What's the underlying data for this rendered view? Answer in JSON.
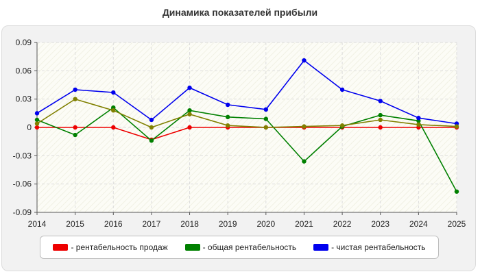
{
  "chart_data": {
    "type": "line",
    "title": "Динамика показателей прибыли",
    "xlabel": "",
    "ylabel": "",
    "x": [
      2014,
      2015,
      2016,
      2017,
      2018,
      2019,
      2020,
      2021,
      2022,
      2023,
      2024,
      2025
    ],
    "x_tick_labels": [
      "2014",
      "2015",
      "2016",
      "2017",
      "2018",
      "2019",
      "2020",
      "2021",
      "2022",
      "2023",
      "2024",
      "2025"
    ],
    "ylim": [
      -0.09,
      0.09
    ],
    "y_ticks": [
      -0.09,
      -0.06,
      -0.03,
      0,
      0.03,
      0.06,
      0.09
    ],
    "y_tick_labels": [
      "-0.09",
      "-0.06",
      "-0.03",
      "0",
      "0.03",
      "0.06",
      "0.09"
    ],
    "grid": true,
    "legend_position": "bottom",
    "series": [
      {
        "name": "- рентабельность продаж",
        "color": "#ee0000",
        "values": [
          0.0,
          0.0,
          0.0,
          -0.013,
          0.0,
          0.0,
          0.0,
          0.0,
          0.0,
          0.0,
          0.0,
          0.0
        ]
      },
      {
        "name": "- общая рентабельность",
        "color": "#008000",
        "values": [
          0.008,
          -0.008,
          0.021,
          -0.014,
          0.018,
          0.011,
          0.009,
          -0.036,
          0.001,
          0.013,
          0.007,
          -0.068
        ]
      },
      {
        "name": "- чистая рентабельность",
        "color": "#0000ee",
        "values": [
          0.015,
          0.04,
          0.037,
          0.008,
          0.042,
          0.024,
          0.019,
          0.071,
          0.04,
          0.028,
          0.01,
          0.004
        ]
      },
      {
        "name": "",
        "color": "#808000",
        "values": [
          0.004,
          0.03,
          0.018,
          0.0,
          0.014,
          0.002,
          0.0,
          0.001,
          0.002,
          0.008,
          0.003,
          0.001
        ]
      }
    ]
  }
}
